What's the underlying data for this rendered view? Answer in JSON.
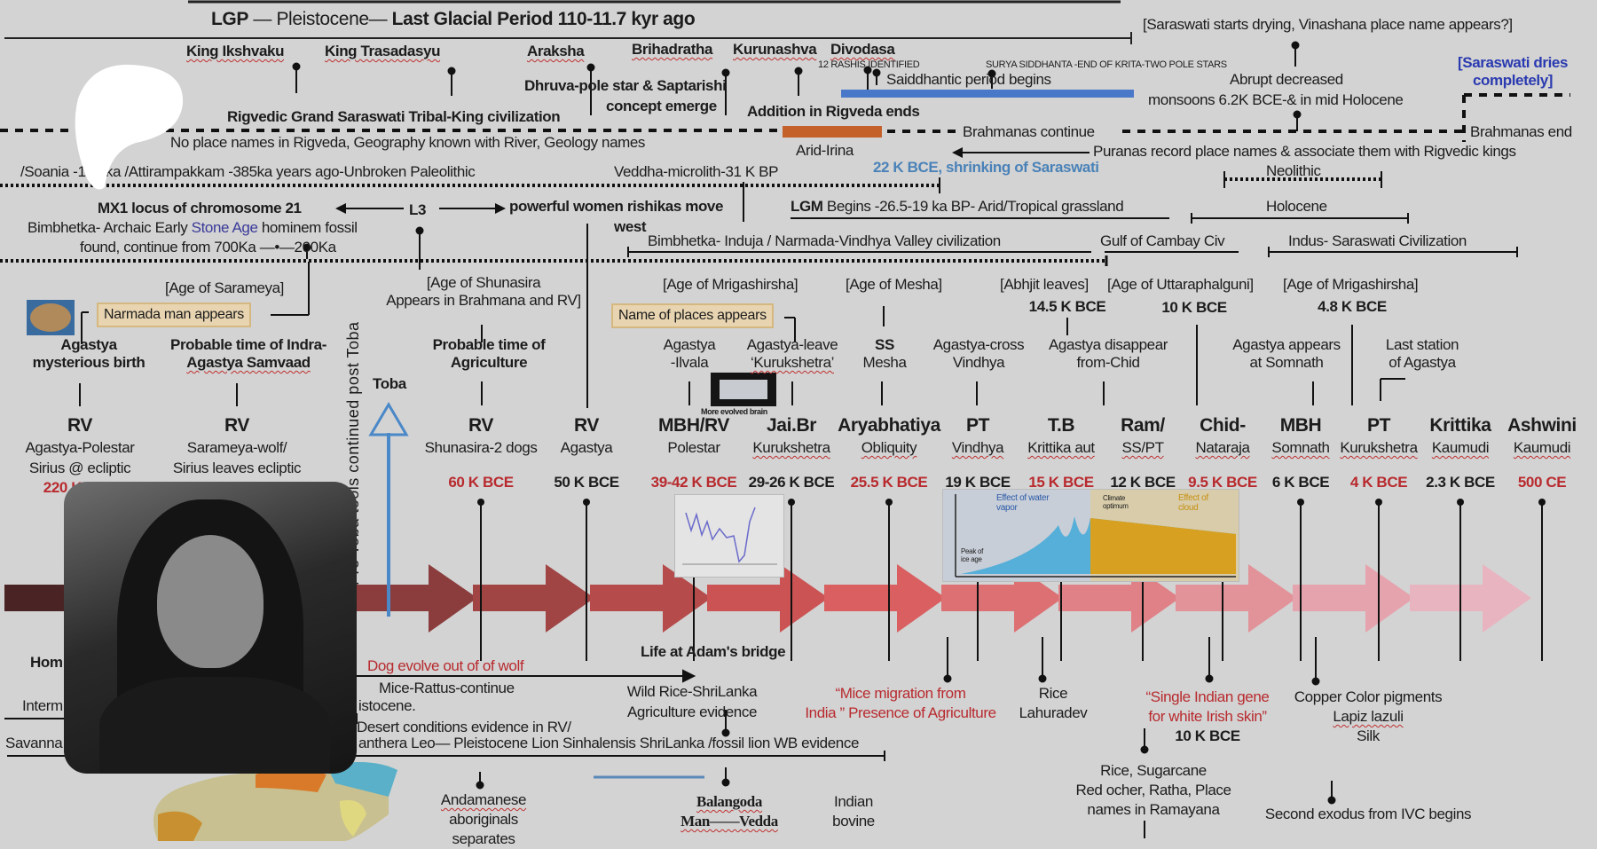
{
  "top": {
    "title_a": "LGP",
    "title_b": " — Pleistocene— ",
    "title_c": "Last Glacial Period 110-11.7 kyr ago",
    "saraswati_drying": "[Saraswati starts drying, Vinashana place name appears?]",
    "saraswati_dries": "[Saraswati dries",
    "saraswati_dries2": "completely]"
  },
  "kings": [
    "King Ikshvaku",
    "King Trasadasyu",
    "Araksha",
    "Brihadratha",
    "Kurunashva",
    "Divodasa"
  ],
  "row2": {
    "rashis": "12 RASHIS IDENTIFIED",
    "surya": "SURYA SIDDHANTA -END OF KRITA-TWO POLE STARS",
    "saiddhantic": "Saiddhantic period begins",
    "dhruva1": "Dhruva-pole star & Saptarishi",
    "dhruva2": "concept emerge",
    "abrupt1": "Abrupt decreased",
    "abrupt2": "monsoons 6.2K BCE-& in mid Holocene",
    "rigvedic": "Rigvedic Grand Saraswati Tribal-King civilization",
    "addition": "Addition in Rigveda ends",
    "brahmanas_continue": "Brahmanas continue",
    "brahmanas_end": "Brahmanas end",
    "no_place": "No place names in Rigveda, Geography known with River, Geology names",
    "arid_irina": "Arid-Irina",
    "puranas": "Puranas record place names & associate them with Rigvedic kings",
    "soania": "/Soania      -130 ka /Attirampakkam -385ka years ago-Unbroken Paleolithic",
    "veddha": "Veddha-microlith-31 K BP",
    "shrinking": "22 K BCE, shrinking of Saraswati",
    "neolithic": "Neolithic"
  },
  "row3": {
    "mx1": "MX1 locus of chromosome 21",
    "l3": "L3",
    "rishikas": "powerful women rishikas move",
    "west": "west",
    "lgm_a": "LGM",
    "lgm_b": " Begins -26.5-19 ka BP- Arid/Tropical grassland",
    "holocene": "Holocene",
    "bimbhetka_a": "Bimbhetka- Archaic Early ",
    "bimbhetka_b": "Stone Age",
    "bimbhetka_c": " hominem fossil",
    "found": "found, continue from 700Ka —•—200Ka",
    "induja": "Bimbhetka- Induja / Narmada-Vindhya Valley civilization",
    "cambay": "Gulf of Cambay Civ",
    "indus": "Indus- Saraswati Civilization"
  },
  "ages": {
    "sarameya": "[Age of Sarameya]",
    "shunasira1": "[Age of Shunasira",
    "shunasira2": "Appears in Brahmana and RV]",
    "mrigashirsha": "[Age of Mrigashirsha]",
    "mesha": "[Age of Mesha]",
    "abhjit": "[Abhjit leaves]",
    "uttara": "[Age of Uttaraphalguni]",
    "mrigashirsha2": "[Age of Mrigashirsha]",
    "d145": "14.5 K BCE",
    "d10": "10 K BCE",
    "d48": "4.8 K BCE",
    "narmada_box": "Narmada man appears",
    "places_box": "Name of places appears",
    "brain_caption": "More evolved brain"
  },
  "notes": [
    [
      "Agastya",
      "mysterious birth"
    ],
    [
      "Probable time of Indra-",
      "Agastya Samvaad"
    ],
    [
      "Probable time of",
      "Agriculture"
    ],
    [
      "Agastya",
      "-Ilvala"
    ],
    [
      "Agastya-leave",
      "‘Kurukshetra’"
    ],
    [
      "SS",
      "Mesha"
    ],
    [
      "Agastya-cross",
      "Vindhya"
    ],
    [
      "Agastya disappear",
      "from-Chid"
    ],
    [
      "Agastya appears",
      "at Somnath"
    ],
    [
      "Last station",
      "of Agastya"
    ]
  ],
  "toba": "Toba",
  "toba_vertical": "Pre Toba tools continued post Toba",
  "timeline": [
    {
      "head": "RV",
      "sub": "Agastya-Polestar",
      "sub2": "Sirius @ ecliptic",
      "date": "220 K BCE",
      "red": true
    },
    {
      "head": "RV",
      "sub": "Sarameya-wolf/",
      "sub2": "Sirius leaves ecliptic",
      "date": "",
      "red": false
    },
    {
      "head": "RV",
      "sub": "Shunasira-2 dogs",
      "date": "60 K BCE",
      "red": true
    },
    {
      "head": "RV",
      "sub": "Agastya",
      "date": "50 K BCE",
      "red": false
    },
    {
      "head": "MBH/RV",
      "sub": "Polestar",
      "date": "39-42 K BCE",
      "red": true
    },
    {
      "head": "Jai.Br",
      "sub": "Kurukshetra",
      "date": "29-26 K BCE",
      "red": false
    },
    {
      "head": "Aryabhatiya",
      "sub": "Obliquity",
      "date": "25.5 K BCE",
      "red": true
    },
    {
      "head": "PT",
      "sub": "Vindhya",
      "date": "19 K BCE",
      "red": false
    },
    {
      "head": "T.B",
      "sub": "Krittika aut",
      "date": "15 K BCE",
      "red": true
    },
    {
      "head": "Ram/",
      "sub": "SS/PT",
      "date": "12 K BCE",
      "red": false
    },
    {
      "head": "Chid-",
      "sub": "Nataraja",
      "date": "9.5 K BCE",
      "red": true
    },
    {
      "head": "MBH",
      "sub": "Somnath",
      "date": "6 K BCE",
      "red": false
    },
    {
      "head": "PT",
      "sub": "Kurukshetra",
      "date": "4 K BCE",
      "red": true
    },
    {
      "head": "Krittika",
      "sub": "Kaumudi",
      "date": "2.3 K BCE",
      "red": false
    },
    {
      "head": "Ashwini",
      "sub": "Kaumudi",
      "date": "500 CE",
      "red": true
    }
  ],
  "inset_chart": {
    "effect_vapor": "Effect of water vapor",
    "effect_cloud": "Effect of cloud",
    "climate_optimum": "Climate optimum",
    "peak_ice": "Peak of ice age"
  },
  "bottom": {
    "hom": "Hom",
    "adams_bridge": "Life at Adam's bridge",
    "dog": "Dog evolve out of of wolf",
    "mice_rattus": "Mice-Rattus-continue",
    "interm": "Interm",
    "istocene": "istocene.",
    "wild_rice1": "Wild Rice-ShriLanka",
    "wild_rice2": "Agriculture evidence",
    "mice_mig1": "“Mice migration from",
    "mice_mig2": "India ” Presence of Agriculture",
    "rice1": "Rice",
    "rice2": "Lahuradev",
    "gene1": "“Single Indian gene",
    "gene2": "for white Irish skin”",
    "gene_date": "10 K BCE",
    "copper1": "Copper Color pigments",
    "copper2": "Lapiz lazuli",
    "copper3": "Silk",
    "desert": "Desert conditions evidence in RV/",
    "savanna": "Savanna",
    "panthera": "anthera Leo— Pleistocene Lion Sinhalensis ShriLanka /fossil lion WB evidence",
    "sugarcane1": "Rice, Sugarcane",
    "sugarcane2": "Red ocher, Ratha, Place",
    "sugarcane3": "names in  Ramayana",
    "andaman1": "Andamanese",
    "andaman2": "aboriginals",
    "andaman3": "separates",
    "balangoda1": "Balangoda",
    "balangoda2": "Man——Vedda",
    "bovine1": "Indian",
    "bovine2": "bovine",
    "exodus": "Second exodus from IVC begins"
  },
  "colors": {
    "arrow_start": "#4a2424",
    "arrow_mid": "#d85858",
    "arrow_end": "#e8b4c0",
    "red_text": "#b82a2e",
    "saiddhantic_bar": "#4a78c8",
    "rigveda_bar": "#c4602a",
    "toba_arrow": "#4a88c8"
  }
}
